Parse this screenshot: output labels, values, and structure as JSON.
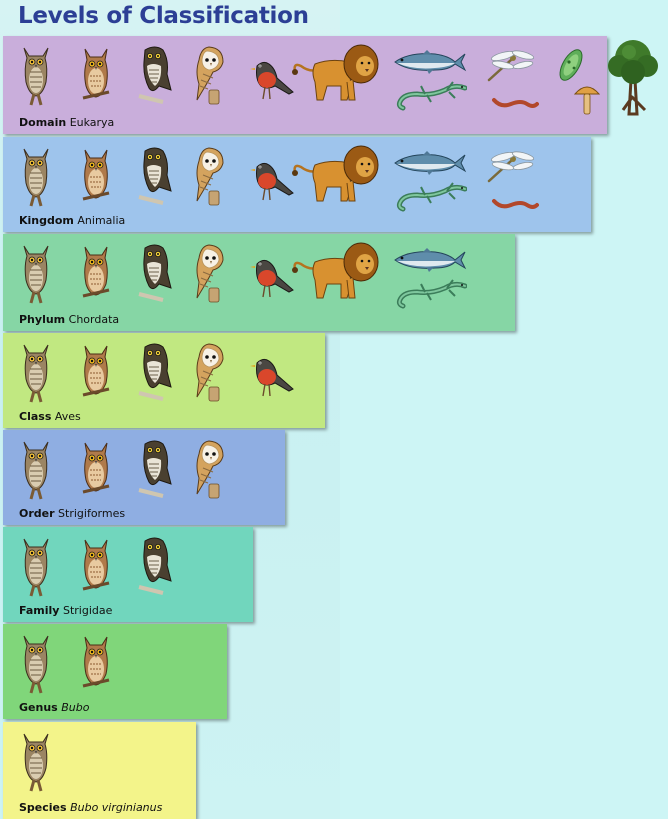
{
  "title": "Levels of Classification",
  "levels": [
    {
      "rank": "Domain",
      "name": "Eukarya",
      "italic": false,
      "color": "#c9aedb",
      "organisms": [
        "great-horned-owl",
        "eastern-screech-owl",
        "northern-hawk-owl",
        "barn-owl",
        "robin",
        "lion",
        "fish",
        "lizard",
        "dragonfly",
        "earthworm",
        "paramecium",
        "mushroom",
        "tree"
      ]
    },
    {
      "rank": "Kingdom",
      "name": "Animalia",
      "italic": false,
      "color": "#9ec4ec",
      "organisms": [
        "great-horned-owl",
        "eastern-screech-owl",
        "northern-hawk-owl",
        "barn-owl",
        "robin",
        "lion",
        "fish",
        "lizard",
        "dragonfly",
        "earthworm"
      ]
    },
    {
      "rank": "Phylum",
      "name": "Chordata",
      "italic": false,
      "color": "#86d6a5",
      "organisms": [
        "great-horned-owl",
        "eastern-screech-owl",
        "northern-hawk-owl",
        "barn-owl",
        "robin",
        "lion",
        "fish",
        "lizard"
      ]
    },
    {
      "rank": "Class",
      "name": "Aves",
      "italic": false,
      "color": "#c1e881",
      "organisms": [
        "great-horned-owl",
        "eastern-screech-owl",
        "northern-hawk-owl",
        "barn-owl",
        "robin"
      ]
    },
    {
      "rank": "Order",
      "name": "Strigiformes",
      "italic": false,
      "color": "#8faee2",
      "organisms": [
        "great-horned-owl",
        "eastern-screech-owl",
        "northern-hawk-owl",
        "barn-owl"
      ]
    },
    {
      "rank": "Family",
      "name": "Strigidae",
      "italic": false,
      "color": "#71d6bd",
      "organisms": [
        "great-horned-owl",
        "eastern-screech-owl",
        "northern-hawk-owl"
      ]
    },
    {
      "rank": "Genus",
      "name": "Bubo",
      "italic": true,
      "color": "#80d67a",
      "organisms": [
        "great-horned-owl",
        "eastern-screech-owl"
      ]
    },
    {
      "rank": "Species",
      "name": "Bubo virginianus",
      "italic": true,
      "color": "#f3f48a",
      "organisms": [
        "great-horned-owl"
      ]
    }
  ]
}
